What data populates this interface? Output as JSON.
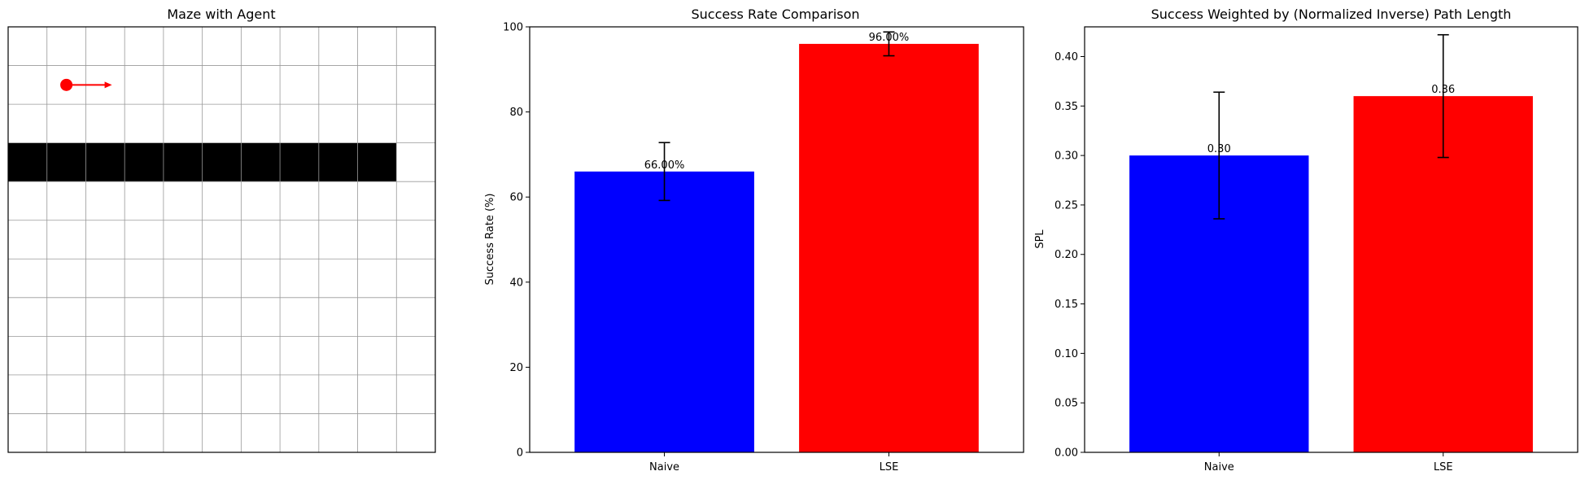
{
  "maze": {
    "title": "Maze with Agent",
    "grid_size": 11,
    "wall": {
      "row": 3,
      "col_start": 0,
      "col_end": 9
    },
    "agent": {
      "row": 1,
      "col": 1,
      "heading": "right"
    },
    "colors": {
      "wall": "#000000",
      "agent": "#ff0000",
      "grid": "#999999"
    }
  },
  "chart_data": [
    {
      "type": "bar",
      "title": "Success Rate Comparison",
      "xlabel": "",
      "ylabel": "Success Rate (%)",
      "categories": [
        "Naive",
        "LSE"
      ],
      "values": [
        66.0,
        96.0
      ],
      "errors": [
        6.8,
        2.8
      ],
      "value_labels": [
        "66.00%",
        "96.00%"
      ],
      "ylim": [
        0,
        100
      ],
      "yticks": [
        0,
        20,
        40,
        60,
        80,
        100
      ],
      "ytick_labels": [
        "0",
        "20",
        "40",
        "60",
        "80",
        "100"
      ],
      "colors": [
        "#0000ff",
        "#ff0000"
      ],
      "grid": false
    },
    {
      "type": "bar",
      "title": "Success Weighted by (Normalized Inverse) Path Length",
      "xlabel": "",
      "ylabel": "SPL",
      "categories": [
        "Naive",
        "LSE"
      ],
      "values": [
        0.3,
        0.36
      ],
      "errors": [
        0.064,
        0.062
      ],
      "value_labels": [
        "0.30",
        "0.36"
      ],
      "ylim": [
        0,
        0.43
      ],
      "yticks": [
        0,
        0.05,
        0.1,
        0.15,
        0.2,
        0.25,
        0.3,
        0.35,
        0.4
      ],
      "ytick_labels": [
        "0.00",
        "0.05",
        "0.10",
        "0.15",
        "0.20",
        "0.25",
        "0.30",
        "0.35",
        "0.40"
      ],
      "colors": [
        "#0000ff",
        "#ff0000"
      ],
      "grid": false
    }
  ]
}
